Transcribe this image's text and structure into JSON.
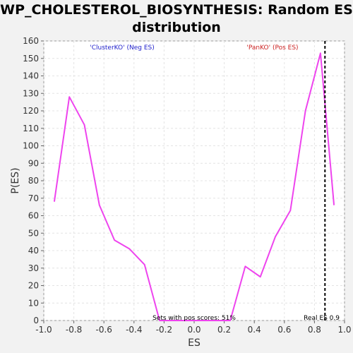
{
  "chart_data": {
    "type": "line",
    "title_line1": "WP_CHOLESTEROL_BIOSYNTHESIS: Random ES",
    "title_line2": "distribution",
    "xlabel": "ES",
    "ylabel": "P(ES)",
    "xlim": [
      -1.0,
      1.0
    ],
    "ylim": [
      0,
      160
    ],
    "x_ticks": [
      "-1.0",
      "-0.8",
      "-0.6",
      "-0.4",
      "-0.2",
      "0.0",
      "0.2",
      "0.4",
      "0.6",
      "0.8",
      "1.0"
    ],
    "y_ticks": [
      "0",
      "10",
      "20",
      "30",
      "40",
      "50",
      "60",
      "70",
      "80",
      "90",
      "100",
      "110",
      "120",
      "130",
      "140",
      "150",
      "160"
    ],
    "grid": true,
    "series": [
      {
        "color": "#ee44ee",
        "x": [
          -0.93,
          -0.83,
          -0.73,
          -0.63,
          -0.53,
          -0.43,
          -0.33,
          -0.23,
          -0.13,
          -0.03,
          0.07,
          0.17,
          0.24,
          0.34,
          0.44,
          0.54,
          0.64,
          0.74,
          0.84,
          0.93
        ],
        "y": [
          68,
          128,
          112,
          66,
          46,
          41,
          32,
          0,
          0,
          0,
          0,
          0,
          0,
          31,
          25,
          48,
          63,
          120,
          153,
          66
        ]
      }
    ],
    "real_es": 0.87,
    "annotations": {
      "neg_label": "'ClusterKO' (Neg ES)",
      "neg_color": "#2222cc",
      "pos_label": "'PanKO' (Pos ES)",
      "pos_color": "#cc2222",
      "sets_with_pos": "Sets with pos scores: 51%",
      "real_es_label": "Real ES 0.9"
    }
  }
}
